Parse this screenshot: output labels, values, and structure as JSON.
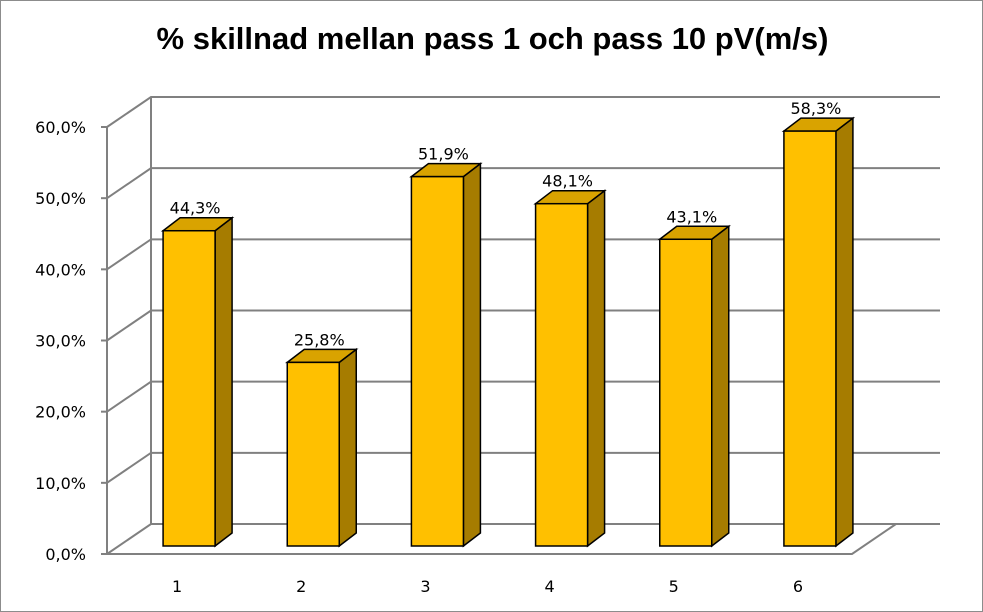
{
  "colors": {
    "bar_front": "#FFC000",
    "bar_side": "#A67C00",
    "bar_top": "#D9A300",
    "bar_outline": "#000000",
    "gridline": "#808080"
  },
  "chart_data": {
    "type": "bar",
    "title": "% skillnad mellan pass 1 och pass 10 pV(m/s)",
    "categories": [
      "1",
      "2",
      "3",
      "4",
      "5",
      "6"
    ],
    "values": [
      44.3,
      25.8,
      51.9,
      48.1,
      43.1,
      58.3
    ],
    "data_labels": [
      "44,3%",
      "25,8%",
      "51,9%",
      "48,1%",
      "43,1%",
      "58,3%"
    ],
    "ylim": [
      0,
      60
    ],
    "yticks": [
      0,
      10,
      20,
      30,
      40,
      50,
      60
    ],
    "ytick_labels": [
      "0,0%",
      "10,0%",
      "20,0%",
      "30,0%",
      "40,0%",
      "50,0%",
      "60,0%"
    ],
    "xlabel": "",
    "ylabel": "",
    "grid": true,
    "legend": "none",
    "style": "3d-column"
  }
}
